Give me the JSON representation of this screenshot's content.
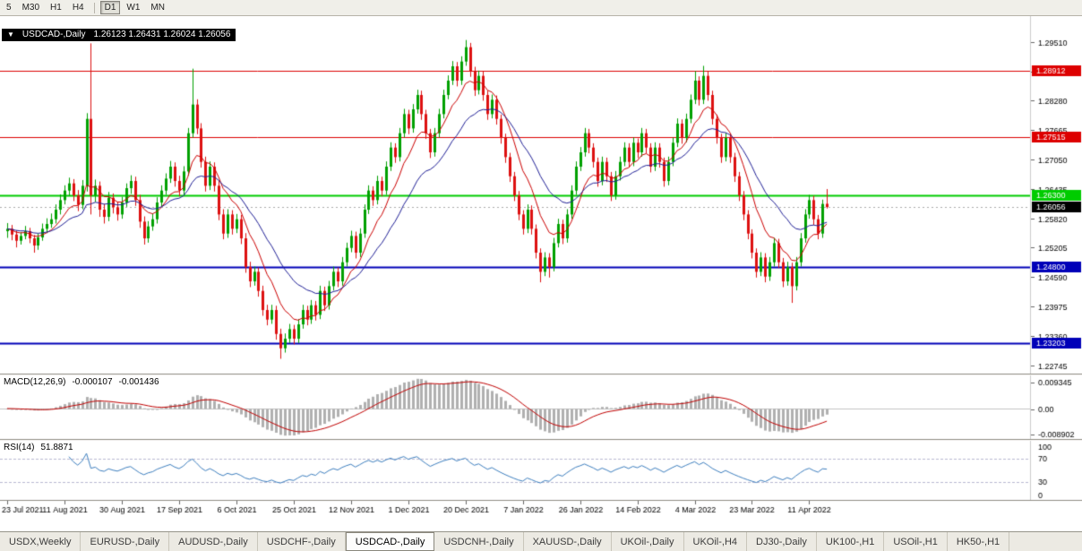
{
  "toolbar": {
    "buttons": [
      {
        "label": "5",
        "active": false
      },
      {
        "label": "M30",
        "active": false
      },
      {
        "label": "H1",
        "active": false
      },
      {
        "label": "H4",
        "active": false
      },
      {
        "label": "D1",
        "active": true
      },
      {
        "label": "W1",
        "active": false
      },
      {
        "label": "MN",
        "active": false
      }
    ]
  },
  "chart_data": {
    "type": "candlestick",
    "title": "USDCAD-,Daily",
    "ohlc_text": "1.26123 1.26431 1.26024 1.26056",
    "colors": {
      "bull": "#00a000",
      "bear": "#dd1111"
    },
    "ylim": [
      1.2257,
      1.3005
    ],
    "yticks": [
      "1.29510",
      "1.28895",
      "1.28280",
      "1.27665",
      "1.27050",
      "1.26435",
      "1.25820",
      "1.25205",
      "1.24590",
      "1.23975",
      "1.23360",
      "1.22745"
    ],
    "levels": [
      {
        "price": 1.28912,
        "label": "1.28912",
        "color": "#dd0000",
        "width": 1
      },
      {
        "price": 1.27515,
        "label": "1.27515",
        "color": "#dd0000",
        "width": 1
      },
      {
        "price": 1.263,
        "label": "1.26300",
        "color": "#00cc00",
        "width": 2
      },
      {
        "price": 1.248,
        "label": "1.24800",
        "color": "#0000b8",
        "width": 2
      },
      {
        "price": 1.23203,
        "label": "1.23203",
        "color": "#0000b8",
        "width": 2
      }
    ],
    "current_price": {
      "value": 1.26056,
      "label": "1.26056",
      "bg": "#000000"
    },
    "moving_averages": [
      {
        "name": "fast-ma",
        "period": 9,
        "color": "#cc0000"
      },
      {
        "name": "slow-ma",
        "period": 21,
        "color": "#1f1f96"
      }
    ],
    "macd": {
      "label": "MACD(12,26,9)",
      "value_macd": "-0.000107",
      "value_signal": "-0.001436",
      "fast": 12,
      "slow": 26,
      "signal": 9,
      "axis": [
        "0.009345",
        "0.00",
        "-0.008902"
      ],
      "hist_color": "#b0b0b0",
      "signal_color": "#c00000"
    },
    "rsi": {
      "label": "RSI(14)",
      "value": "51.8871",
      "period": 14,
      "levels": [
        70,
        30
      ],
      "axis": [
        "100",
        "70",
        "30",
        "0"
      ],
      "line_color": "#3e7fbf"
    },
    "dates": [
      {
        "label": "23 Jul 2021",
        "index": 0
      },
      {
        "label": "11 Aug 2021",
        "index": 13
      },
      {
        "label": "30 Aug 2021",
        "index": 26
      },
      {
        "label": "17 Sep 2021",
        "index": 39
      },
      {
        "label": "6 Oct 2021",
        "index": 52
      },
      {
        "label": "25 Oct 2021",
        "index": 65
      },
      {
        "label": "12 Nov 2021",
        "index": 78
      },
      {
        "label": "1 Dec 2021",
        "index": 91
      },
      {
        "label": "20 Dec 2021",
        "index": 104
      },
      {
        "label": "7 Jan 2022",
        "index": 117
      },
      {
        "label": "26 Jan 2022",
        "index": 130
      },
      {
        "label": "14 Feb 2022",
        "index": 143
      },
      {
        "label": "4 Mar 2022",
        "index": 156
      },
      {
        "label": "23 Mar 2022",
        "index": 169
      },
      {
        "label": "11 Apr 2022",
        "index": 182
      }
    ],
    "candles": [
      [
        1.2555,
        1.2572,
        1.2541,
        1.256
      ],
      [
        1.256,
        1.2568,
        1.2536,
        1.2548
      ],
      [
        1.2548,
        1.2556,
        1.2521,
        1.2535
      ],
      [
        1.2535,
        1.2553,
        1.2527,
        1.2545
      ],
      [
        1.2545,
        1.2566,
        1.2538,
        1.2555
      ],
      [
        1.2555,
        1.2562,
        1.253,
        1.254
      ],
      [
        1.254,
        1.2547,
        1.251,
        1.2525
      ],
      [
        1.2525,
        1.255,
        1.2516,
        1.2542
      ],
      [
        1.2542,
        1.2571,
        1.2535,
        1.256
      ],
      [
        1.256,
        1.2582,
        1.2551,
        1.257
      ],
      [
        1.257,
        1.2592,
        1.2562,
        1.258
      ],
      [
        1.258,
        1.2611,
        1.2571,
        1.26
      ],
      [
        1.26,
        1.2632,
        1.259,
        1.262
      ],
      [
        1.262,
        1.2651,
        1.2611,
        1.264
      ],
      [
        1.264,
        1.2667,
        1.2629,
        1.2655
      ],
      [
        1.2655,
        1.2664,
        1.2618,
        1.263
      ],
      [
        1.263,
        1.2641,
        1.2597,
        1.261
      ],
      [
        1.261,
        1.2662,
        1.2601,
        1.265
      ],
      [
        1.265,
        1.2802,
        1.2638,
        1.279
      ],
      [
        1.279,
        1.2948,
        1.259,
        1.263
      ],
      [
        1.263,
        1.2663,
        1.2616,
        1.265
      ],
      [
        1.265,
        1.2659,
        1.2585,
        1.26
      ],
      [
        1.26,
        1.2612,
        1.2571,
        1.2585
      ],
      [
        1.2585,
        1.2637,
        1.2576,
        1.2625
      ],
      [
        1.2625,
        1.2634,
        1.2592,
        1.2605
      ],
      [
        1.2605,
        1.2616,
        1.2577,
        1.259
      ],
      [
        1.259,
        1.2627,
        1.2581,
        1.2615
      ],
      [
        1.2615,
        1.2655,
        1.2606,
        1.2645
      ],
      [
        1.2645,
        1.2672,
        1.2633,
        1.266
      ],
      [
        1.266,
        1.2669,
        1.2608,
        1.262
      ],
      [
        1.262,
        1.2631,
        1.2562,
        1.2575
      ],
      [
        1.2575,
        1.2586,
        1.2527,
        1.254
      ],
      [
        1.254,
        1.2576,
        1.2531,
        1.2565
      ],
      [
        1.2565,
        1.2592,
        1.2556,
        1.258
      ],
      [
        1.258,
        1.2626,
        1.2571,
        1.2615
      ],
      [
        1.2615,
        1.2651,
        1.2606,
        1.264
      ],
      [
        1.264,
        1.2676,
        1.2631,
        1.2665
      ],
      [
        1.2665,
        1.2702,
        1.2656,
        1.269
      ],
      [
        1.269,
        1.2699,
        1.2648,
        1.266
      ],
      [
        1.266,
        1.2671,
        1.2628,
        1.264
      ],
      [
        1.264,
        1.2691,
        1.2631,
        1.268
      ],
      [
        1.268,
        1.2771,
        1.2671,
        1.276
      ],
      [
        1.276,
        1.2895,
        1.2751,
        1.282
      ],
      [
        1.282,
        1.2831,
        1.2758,
        1.277
      ],
      [
        1.277,
        1.2781,
        1.2688,
        1.27
      ],
      [
        1.27,
        1.2711,
        1.2638,
        1.265
      ],
      [
        1.265,
        1.2701,
        1.2641,
        1.269
      ],
      [
        1.269,
        1.2699,
        1.2638,
        1.265
      ],
      [
        1.265,
        1.2661,
        1.2578,
        1.259
      ],
      [
        1.259,
        1.2601,
        1.2538,
        1.255
      ],
      [
        1.255,
        1.2601,
        1.2541,
        1.259
      ],
      [
        1.259,
        1.2599,
        1.2548,
        1.256
      ],
      [
        1.256,
        1.2591,
        1.2551,
        1.258
      ],
      [
        1.258,
        1.2589,
        1.2528,
        1.254
      ],
      [
        1.254,
        1.2551,
        1.2468,
        1.248
      ],
      [
        1.248,
        1.2491,
        1.2438,
        1.245
      ],
      [
        1.245,
        1.2481,
        1.2441,
        1.247
      ],
      [
        1.247,
        1.2479,
        1.2418,
        1.243
      ],
      [
        1.243,
        1.2441,
        1.2378,
        1.239
      ],
      [
        1.239,
        1.2401,
        1.2358,
        1.237
      ],
      [
        1.237,
        1.2401,
        1.2361,
        1.239
      ],
      [
        1.239,
        1.2399,
        1.2328,
        1.234
      ],
      [
        1.234,
        1.2351,
        1.2288,
        1.231
      ],
      [
        1.231,
        1.2341,
        1.2301,
        1.233
      ],
      [
        1.233,
        1.2361,
        1.2321,
        1.235
      ],
      [
        1.235,
        1.2359,
        1.2318,
        1.233
      ],
      [
        1.233,
        1.2371,
        1.2321,
        1.236
      ],
      [
        1.236,
        1.2401,
        1.2351,
        1.239
      ],
      [
        1.239,
        1.2399,
        1.2358,
        1.237
      ],
      [
        1.237,
        1.2411,
        1.2361,
        1.24
      ],
      [
        1.24,
        1.2409,
        1.2368,
        1.238
      ],
      [
        1.238,
        1.2441,
        1.2371,
        1.243
      ],
      [
        1.243,
        1.2439,
        1.2388,
        1.24
      ],
      [
        1.24,
        1.2451,
        1.2391,
        1.244
      ],
      [
        1.244,
        1.2481,
        1.2431,
        1.247
      ],
      [
        1.247,
        1.2479,
        1.2438,
        1.245
      ],
      [
        1.245,
        1.2501,
        1.2441,
        1.249
      ],
      [
        1.249,
        1.2531,
        1.2481,
        1.252
      ],
      [
        1.252,
        1.2556,
        1.2511,
        1.2545
      ],
      [
        1.2545,
        1.2554,
        1.2498,
        1.251
      ],
      [
        1.251,
        1.2561,
        1.2501,
        1.255
      ],
      [
        1.255,
        1.2611,
        1.2541,
        1.26
      ],
      [
        1.26,
        1.2651,
        1.2591,
        1.264
      ],
      [
        1.264,
        1.2649,
        1.2608,
        1.262
      ],
      [
        1.262,
        1.2671,
        1.2611,
        1.266
      ],
      [
        1.266,
        1.2669,
        1.2628,
        1.264
      ],
      [
        1.264,
        1.2701,
        1.2631,
        1.269
      ],
      [
        1.269,
        1.2741,
        1.2681,
        1.273
      ],
      [
        1.273,
        1.2739,
        1.2698,
        1.271
      ],
      [
        1.271,
        1.2771,
        1.2701,
        1.276
      ],
      [
        1.276,
        1.2811,
        1.2751,
        1.28
      ],
      [
        1.28,
        1.2809,
        1.2758,
        1.277
      ],
      [
        1.277,
        1.2821,
        1.2761,
        1.281
      ],
      [
        1.281,
        1.2851,
        1.2801,
        1.284
      ],
      [
        1.284,
        1.2849,
        1.2788,
        1.28
      ],
      [
        1.28,
        1.2809,
        1.2748,
        1.276
      ],
      [
        1.276,
        1.2769,
        1.2708,
        1.272
      ],
      [
        1.272,
        1.2771,
        1.2711,
        1.276
      ],
      [
        1.276,
        1.2811,
        1.2751,
        1.28
      ],
      [
        1.28,
        1.2851,
        1.2791,
        1.284
      ],
      [
        1.284,
        1.2881,
        1.2831,
        1.287
      ],
      [
        1.287,
        1.2911,
        1.2861,
        1.29
      ],
      [
        1.29,
        1.2909,
        1.2858,
        1.287
      ],
      [
        1.287,
        1.2921,
        1.2861,
        1.291
      ],
      [
        1.291,
        1.2955,
        1.2901,
        1.294
      ],
      [
        1.294,
        1.2949,
        1.2878,
        1.289
      ],
      [
        1.289,
        1.2899,
        1.2838,
        1.285
      ],
      [
        1.285,
        1.2891,
        1.2841,
        1.288
      ],
      [
        1.288,
        1.2889,
        1.2828,
        1.284
      ],
      [
        1.284,
        1.2849,
        1.2788,
        1.28
      ],
      [
        1.28,
        1.2841,
        1.2791,
        1.283
      ],
      [
        1.283,
        1.2839,
        1.2778,
        1.279
      ],
      [
        1.279,
        1.2799,
        1.2738,
        1.275
      ],
      [
        1.275,
        1.2759,
        1.2698,
        1.271
      ],
      [
        1.271,
        1.2719,
        1.2658,
        1.267
      ],
      [
        1.267,
        1.2679,
        1.2618,
        1.263
      ],
      [
        1.263,
        1.2639,
        1.2578,
        1.259
      ],
      [
        1.259,
        1.2599,
        1.2548,
        1.256
      ],
      [
        1.256,
        1.2611,
        1.2551,
        1.26
      ],
      [
        1.26,
        1.2609,
        1.2548,
        1.256
      ],
      [
        1.256,
        1.2569,
        1.2498,
        1.251
      ],
      [
        1.251,
        1.2519,
        1.2448,
        1.247
      ],
      [
        1.247,
        1.2511,
        1.2461,
        1.25
      ],
      [
        1.25,
        1.2509,
        1.2458,
        1.248
      ],
      [
        1.248,
        1.2541,
        1.2471,
        1.253
      ],
      [
        1.253,
        1.2581,
        1.2521,
        1.257
      ],
      [
        1.257,
        1.2579,
        1.2528,
        1.254
      ],
      [
        1.254,
        1.2601,
        1.2531,
        1.259
      ],
      [
        1.259,
        1.2651,
        1.2581,
        1.264
      ],
      [
        1.264,
        1.2701,
        1.2631,
        1.269
      ],
      [
        1.269,
        1.2731,
        1.2681,
        1.272
      ],
      [
        1.272,
        1.2771,
        1.2711,
        1.276
      ],
      [
        1.276,
        1.2769,
        1.2718,
        1.273
      ],
      [
        1.273,
        1.2739,
        1.2688,
        1.27
      ],
      [
        1.27,
        1.2709,
        1.2648,
        1.266
      ],
      [
        1.266,
        1.2711,
        1.2651,
        1.27
      ],
      [
        1.27,
        1.2709,
        1.2658,
        1.267
      ],
      [
        1.267,
        1.2679,
        1.2618,
        1.263
      ],
      [
        1.263,
        1.2681,
        1.2621,
        1.267
      ],
      [
        1.267,
        1.2711,
        1.2661,
        1.27
      ],
      [
        1.27,
        1.2741,
        1.2691,
        1.273
      ],
      [
        1.273,
        1.2739,
        1.2688,
        1.27
      ],
      [
        1.27,
        1.2751,
        1.2691,
        1.274
      ],
      [
        1.274,
        1.2749,
        1.2708,
        1.272
      ],
      [
        1.272,
        1.2771,
        1.2711,
        1.276
      ],
      [
        1.276,
        1.2769,
        1.2718,
        1.273
      ],
      [
        1.273,
        1.2739,
        1.2678,
        1.269
      ],
      [
        1.269,
        1.2741,
        1.2681,
        1.273
      ],
      [
        1.273,
        1.2739,
        1.2688,
        1.27
      ],
      [
        1.27,
        1.2709,
        1.2648,
        1.266
      ],
      [
        1.266,
        1.2711,
        1.2651,
        1.27
      ],
      [
        1.27,
        1.2751,
        1.2691,
        1.274
      ],
      [
        1.274,
        1.2791,
        1.2731,
        1.278
      ],
      [
        1.278,
        1.2789,
        1.2738,
        1.275
      ],
      [
        1.275,
        1.2801,
        1.2741,
        1.279
      ],
      [
        1.279,
        1.2841,
        1.2781,
        1.283
      ],
      [
        1.283,
        1.289,
        1.2821,
        1.287
      ],
      [
        1.287,
        1.2879,
        1.2818,
        1.283
      ],
      [
        1.283,
        1.2901,
        1.2821,
        1.288
      ],
      [
        1.288,
        1.2889,
        1.2828,
        1.284
      ],
      [
        1.284,
        1.2849,
        1.2778,
        1.279
      ],
      [
        1.279,
        1.2799,
        1.2738,
        1.275
      ],
      [
        1.275,
        1.2759,
        1.2698,
        1.271
      ],
      [
        1.271,
        1.2761,
        1.2701,
        1.275
      ],
      [
        1.275,
        1.2759,
        1.2698,
        1.271
      ],
      [
        1.271,
        1.2719,
        1.2658,
        1.267
      ],
      [
        1.267,
        1.2679,
        1.2618,
        1.263
      ],
      [
        1.263,
        1.2639,
        1.2578,
        1.259
      ],
      [
        1.259,
        1.2599,
        1.2538,
        1.255
      ],
      [
        1.255,
        1.2559,
        1.2498,
        1.251
      ],
      [
        1.251,
        1.2519,
        1.2458,
        1.247
      ],
      [
        1.247,
        1.2511,
        1.2461,
        1.25
      ],
      [
        1.25,
        1.2509,
        1.2448,
        1.246
      ],
      [
        1.246,
        1.2501,
        1.2451,
        1.249
      ],
      [
        1.249,
        1.2541,
        1.2481,
        1.253
      ],
      [
        1.253,
        1.2539,
        1.2478,
        1.249
      ],
      [
        1.249,
        1.2499,
        1.2438,
        1.245
      ],
      [
        1.245,
        1.2491,
        1.2441,
        1.248
      ],
      [
        1.248,
        1.2489,
        1.2405,
        1.244
      ],
      [
        1.244,
        1.2501,
        1.2431,
        1.249
      ],
      [
        1.249,
        1.2551,
        1.2481,
        1.254
      ],
      [
        1.254,
        1.2601,
        1.2531,
        1.259
      ],
      [
        1.259,
        1.2631,
        1.2581,
        1.262
      ],
      [
        1.262,
        1.2629,
        1.2568,
        1.258
      ],
      [
        1.258,
        1.2589,
        1.2538,
        1.255
      ],
      [
        1.255,
        1.2621,
        1.2541,
        1.2612
      ],
      [
        1.26123,
        1.26431,
        1.26024,
        1.26056
      ]
    ]
  },
  "tabs": [
    {
      "label": "USDX,Weekly",
      "active": false
    },
    {
      "label": "EURUSD-,Daily",
      "active": false
    },
    {
      "label": "AUDUSD-,Daily",
      "active": false
    },
    {
      "label": "USDCHF-,Daily",
      "active": false
    },
    {
      "label": "USDCAD-,Daily",
      "active": true
    },
    {
      "label": "USDCNH-,Daily",
      "active": false
    },
    {
      "label": "XAUUSD-,Daily",
      "active": false
    },
    {
      "label": "UKOil-,Daily",
      "active": false
    },
    {
      "label": "UKOil-,H4",
      "active": false
    },
    {
      "label": "DJ30-,Daily",
      "active": false
    },
    {
      "label": "UK100-,H1",
      "active": false
    },
    {
      "label": "USOil-,H1",
      "active": false
    },
    {
      "label": "HK50-,H1",
      "active": false
    }
  ]
}
